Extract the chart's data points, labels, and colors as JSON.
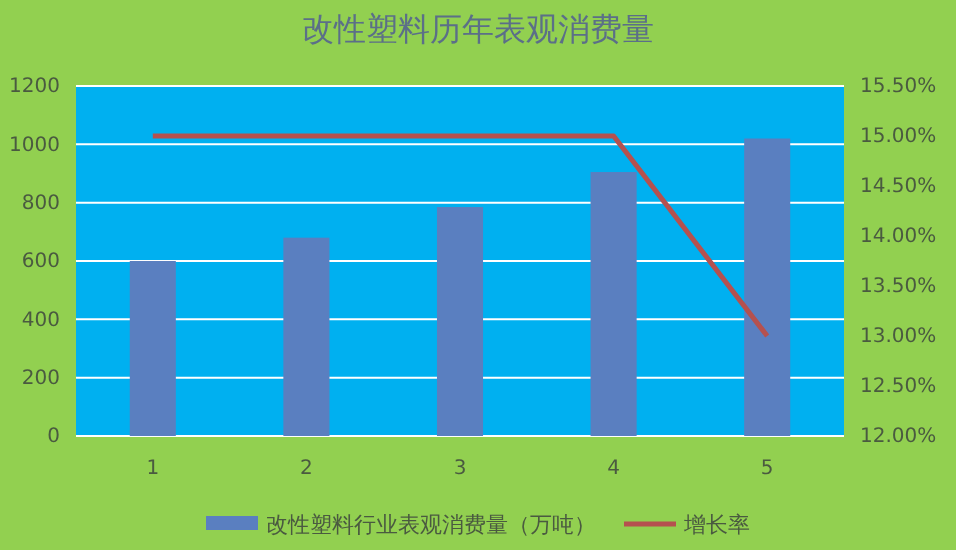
{
  "chart_data": {
    "type": "bar",
    "title": "改性塑料历年表观消费量",
    "categories": [
      "1",
      "2",
      "3",
      "4",
      "5"
    ],
    "series": [
      {
        "name": "改性塑料行业表观消费量（万吨）",
        "color": "#5a7fc0",
        "values": [
          600,
          680,
          785,
          905,
          1020
        ]
      },
      {
        "name": "增长率",
        "type": "line",
        "axis": "y2",
        "color": "#b5514f",
        "values": [
          15.0,
          15.0,
          15.0,
          15.0,
          13.0
        ]
      }
    ],
    "ylim": [
      0,
      1200
    ],
    "yticks": [
      0,
      200,
      400,
      600,
      800,
      1000,
      1200
    ],
    "y2lim": [
      12,
      15.5
    ],
    "y2ticks": [
      {
        "value": 12,
        "label": "12.00%"
      },
      {
        "value": 12.5,
        "label": "12.50%"
      },
      {
        "value": 13,
        "label": "13.00%"
      },
      {
        "value": 13.5,
        "label": "13.50%"
      },
      {
        "value": 14,
        "label": "14.00%"
      },
      {
        "value": 14.5,
        "label": "14.50%"
      },
      {
        "value": 15,
        "label": "15.00%"
      },
      {
        "value": 15.5,
        "label": "15.50%"
      }
    ],
    "grid": "y",
    "legend": "bottom",
    "line_style": "solid",
    "marker": "none"
  }
}
